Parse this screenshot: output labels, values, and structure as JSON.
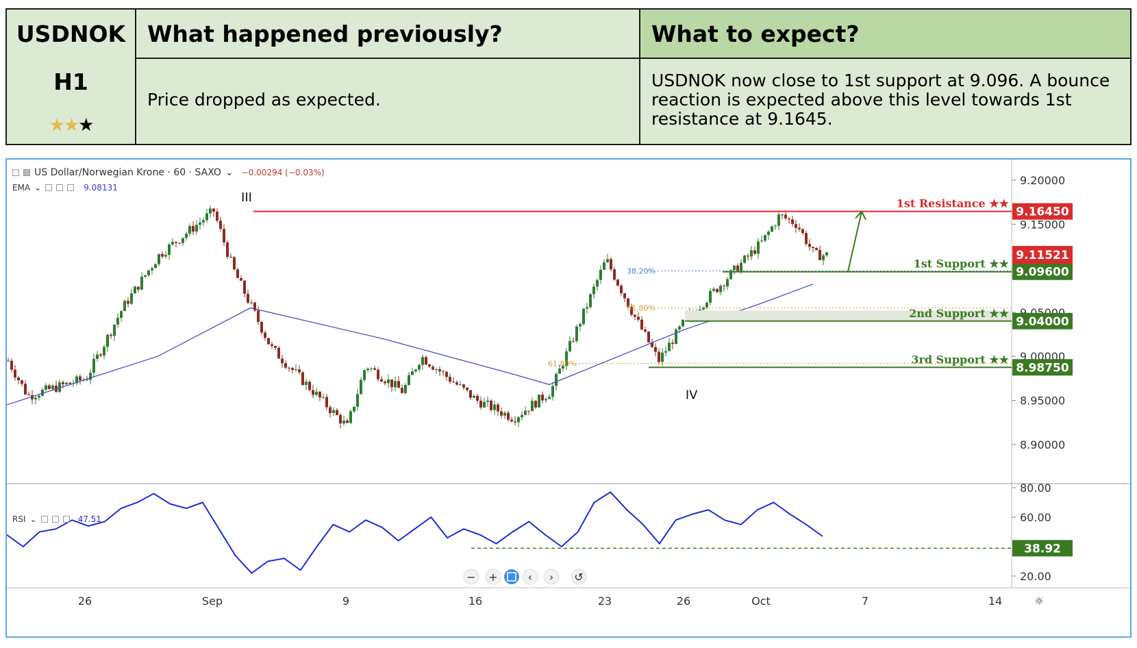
{
  "header": {
    "symbol": "USDNOK",
    "timeframe": "H1",
    "rating": {
      "stars_filled": 2,
      "stars_total": 3
    },
    "previous_title": "What happened previously?",
    "previous_text": "Price dropped as expected.",
    "expect_title": "What to expect?",
    "expect_text": "USDNOK now close to 1st support at 9.096. A bounce reaction is expected above this level towards 1st resistance at 9.1645."
  },
  "chart_legend": {
    "instrument": "US Dollar/Norwegian Krone · 60 · SAXO",
    "change": "−0.00294 (−0.03%)",
    "ema_label": "EMA",
    "ema_value": "9.08131",
    "rsi_label": "RSI",
    "rsi_value": "47.51"
  },
  "colors": {
    "resistance": "#d92b2b",
    "support": "#3b7a23",
    "price_tag": "#d92b2b",
    "ema_line": "#4b4fbf",
    "rsi_line": "#1d2bd6",
    "candle_up": "#2e7d32",
    "candle_down": "#8b2c22",
    "header_light": "#dcead3",
    "header_dark": "#b9d8a6",
    "frame": "#5ba9e0"
  },
  "chart_data": [
    {
      "type": "candlestick",
      "title": "US Dollar/Norwegian Krone · 60 · SAXO",
      "xlabel": "",
      "ylabel": "",
      "ylim": [
        8.865,
        9.22
      ],
      "y_ticks": [
        "9.20000",
        "9.15000",
        "9.10000",
        "9.05000",
        "9.00000",
        "8.95000",
        "8.90000"
      ],
      "x_ticks": [
        "26",
        "Sep",
        "9",
        "16",
        "23",
        "26",
        "Oct",
        "7",
        "14"
      ],
      "close_path": [
        {
          "date": "Aug 22",
          "value": 8.995
        },
        {
          "date": "Aug 23",
          "value": 8.955
        },
        {
          "date": "Aug 26",
          "value": 8.975
        },
        {
          "date": "Aug 28",
          "value": 9.055
        },
        {
          "date": "Aug 30",
          "value": 9.115
        },
        {
          "date": "Sep 2",
          "value": 9.165
        },
        {
          "date": "Sep 3",
          "value": 9.1
        },
        {
          "date": "Sep 5",
          "value": 9.01
        },
        {
          "date": "Sep 9",
          "value": 8.92
        },
        {
          "date": "Sep 10",
          "value": 8.99
        },
        {
          "date": "Sep 12",
          "value": 8.96
        },
        {
          "date": "Sep 13",
          "value": 9.0
        },
        {
          "date": "Sep 16",
          "value": 8.95
        },
        {
          "date": "Sep 18",
          "value": 8.93
        },
        {
          "date": "Sep 20",
          "value": 8.96
        },
        {
          "date": "Sep 23",
          "value": 9.11
        },
        {
          "date": "Sep 24",
          "value": 9.05
        },
        {
          "date": "Sep 25",
          "value": 8.995
        },
        {
          "date": "Sep 26",
          "value": 9.04
        },
        {
          "date": "Oct 1",
          "value": 9.13
        },
        {
          "date": "Oct 2",
          "value": 9.16
        },
        {
          "date": "Oct 3",
          "value": 9.15
        },
        {
          "date": "Oct 4",
          "value": 9.115
        }
      ],
      "ema_path": [
        {
          "date": "Aug 22",
          "value": 8.945
        },
        {
          "date": "Aug 30",
          "value": 9.0
        },
        {
          "date": "Sep 4",
          "value": 9.055
        },
        {
          "date": "Sep 11",
          "value": 9.02
        },
        {
          "date": "Sep 18",
          "value": 8.98
        },
        {
          "date": "Sep 20",
          "value": 8.968
        },
        {
          "date": "Sep 26",
          "value": 9.03
        },
        {
          "date": "Oct 1",
          "value": 9.06
        },
        {
          "date": "Oct 4",
          "value": 9.082
        }
      ],
      "wave_labels": [
        {
          "text": "III",
          "date": "Sep 2",
          "value": 9.165
        },
        {
          "text": "IV",
          "date": "Sep 25",
          "value": 8.995
        }
      ],
      "levels": [
        {
          "name": "1st Resistance",
          "stars": "★★",
          "value": 9.1645,
          "tag": "9.16450",
          "kind": "resistance"
        },
        {
          "name": "1st Support",
          "stars": "★★",
          "value": 9.096,
          "tag": "9.09600",
          "kind": "support"
        },
        {
          "name": "2nd Support",
          "stars": "★★",
          "value": 9.04,
          "tag": "9.04000",
          "kind": "support"
        },
        {
          "name": "3rd Support",
          "stars": "★★",
          "value": 8.9875,
          "tag": "8.98750",
          "kind": "support"
        }
      ],
      "fib_levels": [
        {
          "label": "38.20%",
          "value": 9.097
        },
        {
          "label": "61.80%",
          "value": 9.055
        },
        {
          "label": "61.80%",
          "value": 8.992
        }
      ],
      "last_price": {
        "value": 9.11521,
        "tag": "9.11521"
      },
      "projection": {
        "from": 9.096,
        "to": 9.1645
      }
    },
    {
      "type": "line",
      "title": "RSI",
      "xlabel": "",
      "ylabel": "",
      "ylim": [
        15,
        82
      ],
      "y_ticks": [
        "80.00",
        "60.00",
        "20.00"
      ],
      "level": {
        "value": 38.92,
        "tag": "38.92"
      },
      "values": [
        48,
        40,
        50,
        52,
        58,
        54,
        57,
        66,
        70,
        76,
        69,
        66,
        70,
        52,
        34,
        22,
        30,
        32,
        24,
        40,
        55,
        50,
        58,
        53,
        44,
        52,
        60,
        46,
        52,
        48,
        42,
        50,
        57,
        48,
        40,
        50,
        70,
        77,
        65,
        55,
        42,
        58,
        62,
        65,
        58,
        55,
        65,
        70,
        62,
        55,
        47
      ]
    }
  ]
}
